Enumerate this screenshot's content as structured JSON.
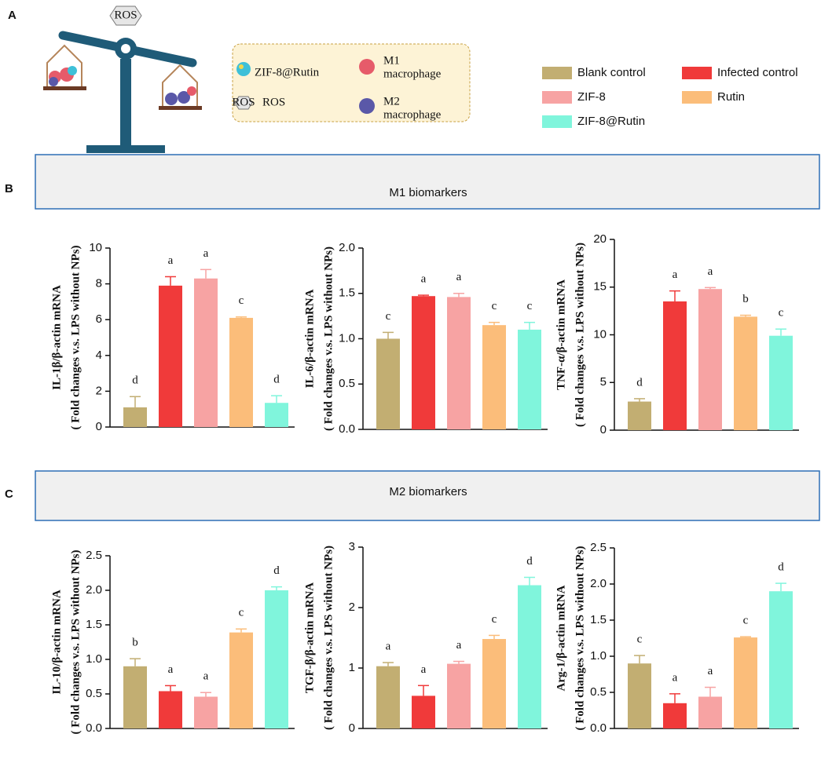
{
  "panel_labels": [
    "A",
    "B",
    "C"
  ],
  "schematic": {
    "hex_label": "ROS",
    "items": [
      "ZIF-8@Rutin",
      "ROS"
    ],
    "m1": [
      "M1",
      "macrophage"
    ],
    "m2": [
      "M2",
      "macrophage"
    ]
  },
  "legend": [
    {
      "name": "Blank control",
      "color": "#c2ae72"
    },
    {
      "name": "Infected control",
      "color": "#f03a3a"
    },
    {
      "name": "ZIF-8",
      "color": "#f7a3a3"
    },
    {
      "name": "Rutin",
      "color": "#fbbd7a"
    },
    {
      "name": "ZIF-8@Rutin",
      "color": "#80f5dc"
    }
  ],
  "sections": [
    "M1 biomarkers",
    "M2 biomarkers"
  ],
  "chart_data": [
    {
      "type": "bar",
      "ylabel": [
        "IL-1β/β-actin mRNA",
        "( Fold changes v.s. LPS without NPs)"
      ],
      "values": [
        1.1,
        7.9,
        8.3,
        6.1,
        1.35
      ],
      "errors": [
        0.6,
        0.5,
        0.5,
        0.05,
        0.4
      ],
      "letters": [
        "d",
        "a",
        "a",
        "c",
        "d"
      ],
      "ylim": [
        0,
        10
      ],
      "yticks": [
        0,
        2,
        4,
        6,
        8,
        10
      ]
    },
    {
      "type": "bar",
      "ylabel": [
        "IL-6/β-actin mRNA",
        "( Fold changes v.s. LPS without NPs)"
      ],
      "values": [
        1.0,
        1.47,
        1.46,
        1.15,
        1.1
      ],
      "errors": [
        0.07,
        0.01,
        0.04,
        0.03,
        0.08
      ],
      "letters": [
        "c",
        "a",
        "a",
        "c",
        "c"
      ],
      "ylim": [
        0,
        2
      ],
      "yticks": [
        {
          "value": 0,
          "label": "0.0"
        },
        0.5,
        {
          "value": 1,
          "label": "1.0"
        },
        1.5,
        {
          "value": 2,
          "label": "2.0"
        }
      ]
    },
    {
      "type": "bar",
      "ylabel": [
        "TNF-α/β-actin mRNA",
        "( Fold changes v.s. LPS without NPs)"
      ],
      "values": [
        3.0,
        13.5,
        14.8,
        11.9,
        9.9
      ],
      "errors": [
        0.3,
        1.1,
        0.15,
        0.15,
        0.7
      ],
      "letters": [
        "d",
        "a",
        "a",
        "b",
        "c"
      ],
      "ylim": [
        0,
        20
      ],
      "yticks": [
        0,
        5,
        10,
        15,
        20
      ]
    },
    {
      "type": "bar",
      "ylabel": [
        "IL-10/β-actin mRNA",
        "( Fold changes v.s. LPS without NPs)"
      ],
      "values": [
        0.9,
        0.54,
        0.46,
        1.39,
        2.0
      ],
      "errors": [
        0.11,
        0.08,
        0.06,
        0.05,
        0.05
      ],
      "letters": [
        "b",
        "a",
        "a",
        "c",
        "d"
      ],
      "ylim": [
        0,
        2.5
      ],
      "yticks": [
        {
          "value": 0,
          "label": "0.0"
        },
        0.5,
        {
          "value": 1,
          "label": "1.0"
        },
        1.5,
        {
          "value": 2,
          "label": "2.0"
        },
        2.5
      ]
    },
    {
      "type": "bar",
      "ylabel": [
        "TGF-β/β-actin mRNA",
        "( Fold changes v.s. LPS without NPs)"
      ],
      "values": [
        1.03,
        0.54,
        1.07,
        1.48,
        2.37
      ],
      "errors": [
        0.06,
        0.17,
        0.04,
        0.06,
        0.13
      ],
      "letters": [
        "a",
        "a",
        "a",
        "c",
        "d"
      ],
      "ylim": [
        0,
        3
      ],
      "yticks": [
        0,
        1,
        2,
        3
      ]
    },
    {
      "type": "bar",
      "ylabel": [
        "Arg-1/β-actin mRNA",
        "( Fold changes v.s. LPS without NPs)"
      ],
      "values": [
        0.9,
        0.35,
        0.44,
        1.26,
        1.9
      ],
      "errors": [
        0.11,
        0.13,
        0.13,
        0.01,
        0.11
      ],
      "letters": [
        "c",
        "a",
        "a",
        "c",
        "d"
      ],
      "ylim": [
        0,
        2.5
      ],
      "yticks": [
        {
          "value": 0,
          "label": "0.0"
        },
        0.5,
        {
          "value": 1,
          "label": "1.0"
        },
        1.5,
        {
          "value": 2,
          "label": "2.0"
        },
        2.5
      ]
    }
  ]
}
